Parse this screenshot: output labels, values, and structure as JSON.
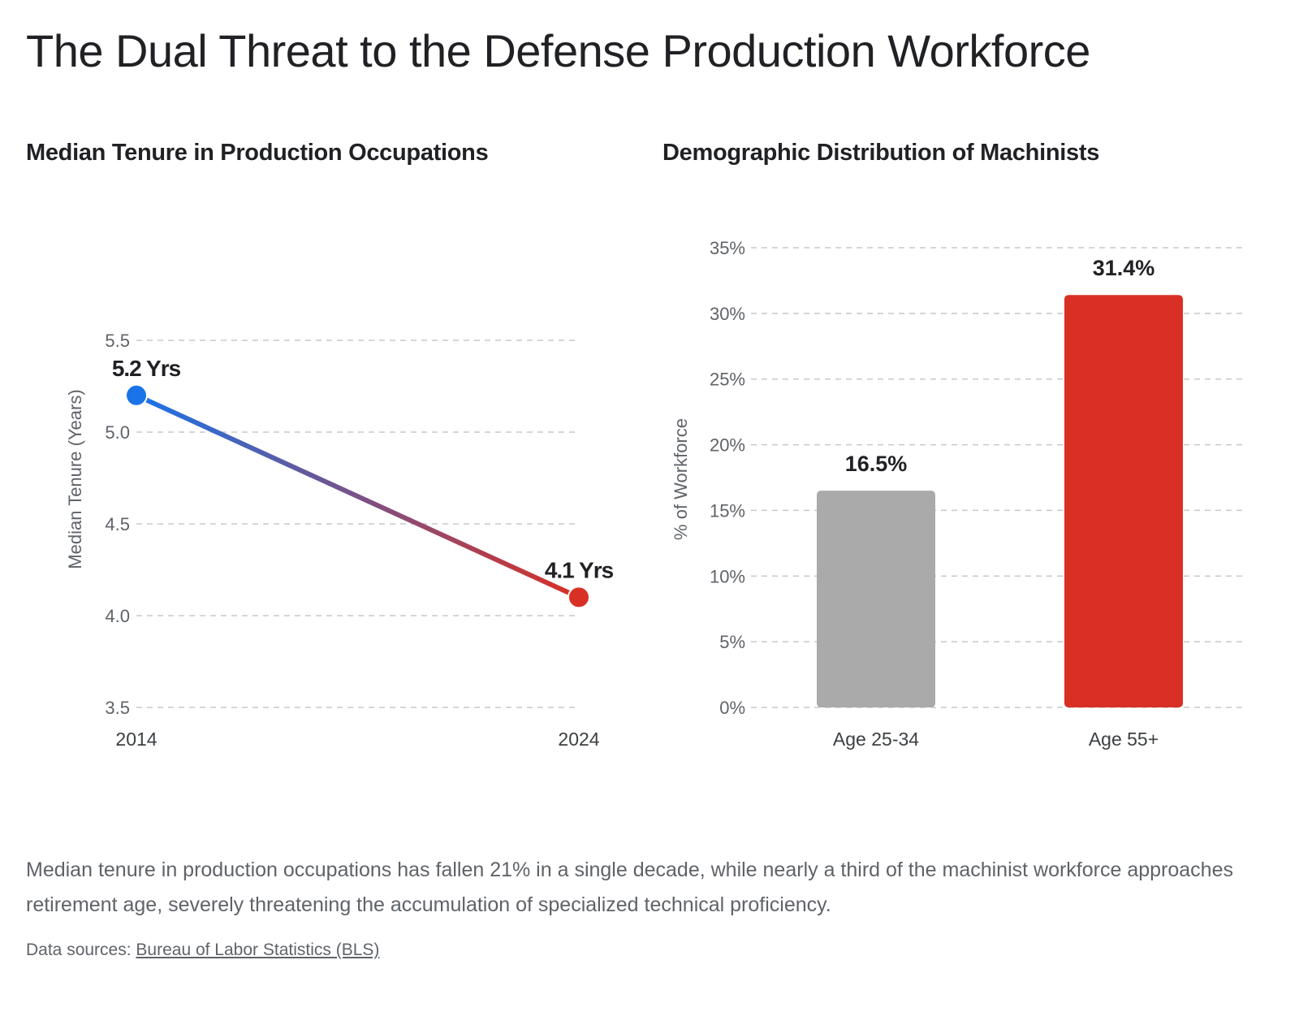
{
  "title": "The Dual Threat to the Defense Production Workforce",
  "chart_data": [
    {
      "type": "line",
      "title": "Median Tenure in Production Occupations",
      "xlabel": "",
      "ylabel": "Median Tenure (Years)",
      "categories": [
        "2014",
        "2024"
      ],
      "values": [
        5.2,
        4.1
      ],
      "data_labels": [
        "5.2 Yrs",
        "4.1 Yrs"
      ],
      "point_colors": [
        "#1a73e8",
        "#d93025"
      ],
      "ylim": [
        3.5,
        5.5
      ],
      "yticks": [
        "3.5",
        "4.0",
        "4.5",
        "5.0",
        "5.5"
      ],
      "grid": true
    },
    {
      "type": "bar",
      "title": "Demographic Distribution of Machinists",
      "xlabel": "",
      "ylabel": "% of Workforce",
      "categories": [
        "Age 25-34",
        "Age 55+"
      ],
      "values": [
        16.5,
        31.4
      ],
      "data_labels": [
        "16.5%",
        "31.4%"
      ],
      "bar_colors": [
        "#aaaaaa",
        "#d93025"
      ],
      "ylim": [
        0,
        35
      ],
      "yticks": [
        "0%",
        "5%",
        "10%",
        "15%",
        "20%",
        "25%",
        "30%",
        "35%"
      ],
      "grid": true
    }
  ],
  "description": "Median tenure in production occupations has fallen 21% in a single decade, while nearly a third of the machinist workforce approaches retirement age, severely threatening the accumulation of specialized technical proficiency.",
  "sources_label": "Data sources:",
  "sources_link": "Bureau of Labor Statistics (BLS)"
}
